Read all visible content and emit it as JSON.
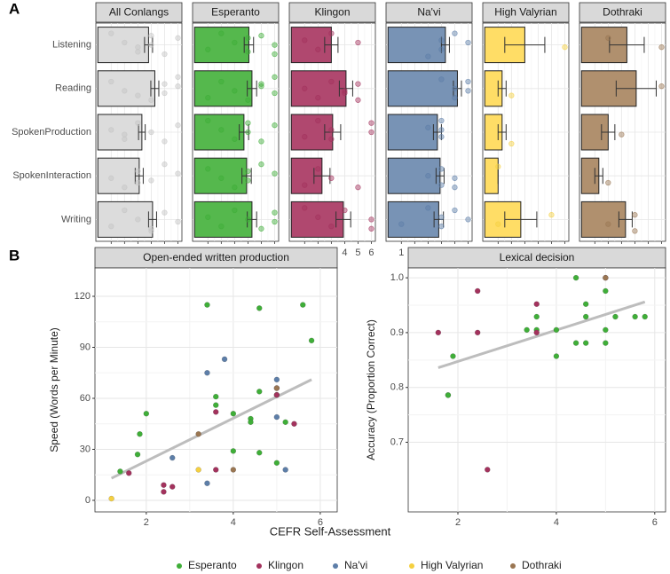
{
  "labels": {
    "a": "A",
    "b": "B"
  },
  "x_label": "CEFR Self-Assessment",
  "legend": {
    "position": "bottom"
  },
  "chart_data": [
    {
      "type": "facet-bar",
      "orientation": "horizontal",
      "categories": [
        "Listening",
        "Reading",
        "SpokenProduction",
        "SpokenInteraction",
        "Writing"
      ],
      "xlim": [
        -0.15,
        6.3
      ],
      "xticks": [
        1,
        2,
        3,
        4,
        5,
        6
      ],
      "grid": true,
      "series": [
        {
          "name": "All Conlangs",
          "color": "#dcdcdc",
          "point_color": "#c4c4c4",
          "values": [
            3.8,
            4.27,
            3.3,
            3.1,
            4.1
          ],
          "errors": [
            0.3,
            0.3,
            0.25,
            0.3,
            0.3
          ],
          "points": [
            [
              1,
              2,
              3,
              4,
              4,
              5,
              6,
              3
            ],
            [
              1,
              2,
              4,
              5,
              5,
              6,
              6,
              3
            ],
            [
              1,
              2,
              3,
              4,
              5,
              6,
              2
            ],
            [
              1,
              2,
              3,
              4,
              5,
              6,
              3
            ],
            [
              1,
              2,
              3,
              4,
              5,
              6,
              4
            ]
          ]
        },
        {
          "name": "Esperanto",
          "color": "#55b84d",
          "point_color": "#3fae38",
          "values": [
            4.07,
            4.3,
            3.7,
            3.9,
            4.3
          ],
          "errors": [
            0.35,
            0.35,
            0.35,
            0.35,
            0.35
          ],
          "points": [
            [
              1,
              2,
              3,
              4,
              5,
              6,
              6,
              4
            ],
            [
              1,
              2,
              3,
              4,
              5,
              6,
              6,
              5
            ],
            [
              1,
              2,
              3,
              4,
              4,
              5,
              6
            ],
            [
              1,
              2,
              3,
              4,
              4,
              5,
              6
            ],
            [
              1,
              2,
              3,
              4,
              5,
              6,
              6
            ]
          ]
        },
        {
          "name": "Klingon",
          "color": "#b0486f",
          "point_color": "#a3325d",
          "values": [
            3.0,
            4.1,
            3.1,
            2.3,
            3.9
          ],
          "errors": [
            0.5,
            0.5,
            0.6,
            0.6,
            0.55
          ],
          "points": [
            [
              1,
              2,
              3,
              5
            ],
            [
              1,
              2,
              3,
              4,
              5,
              5,
              4
            ],
            [
              1,
              2,
              3,
              3,
              6,
              6
            ],
            [
              1,
              2,
              3,
              5
            ],
            [
              1,
              2,
              3,
              4,
              6,
              6
            ]
          ]
        },
        {
          "name": "Na'vi",
          "color": "#7893b5",
          "point_color": "#5d7ea8",
          "values": [
            4.3,
            5.2,
            3.7,
            3.9,
            3.8
          ],
          "errors": [
            0.3,
            0.3,
            0.3,
            0.3,
            0.35
          ],
          "points": [
            [
              3,
              4,
              4,
              5,
              6
            ],
            [
              4,
              5,
              5,
              6,
              6
            ],
            [
              3,
              4,
              4,
              4
            ],
            [
              3,
              4,
              4,
              5,
              5
            ],
            [
              1,
              3,
              4,
              4,
              5,
              6
            ]
          ]
        },
        {
          "name": "High Valyrian",
          "color": "#ffdd66",
          "point_color": "#f5d040",
          "values": [
            3.0,
            1.3,
            1.3,
            1.0,
            2.7
          ],
          "errors": [
            1.5,
            0.3,
            0.3,
            0,
            1.2
          ],
          "points": [
            [
              6
            ],
            [
              2
            ],
            [
              2
            ],
            [
              1
            ],
            [
              5,
              1
            ]
          ]
        },
        {
          "name": "Dothraki",
          "color": "#b0906e",
          "point_color": "#9a7652",
          "values": [
            3.4,
            4.1,
            2.0,
            1.3,
            3.3
          ],
          "errors": [
            1.3,
            1.5,
            0.5,
            0.3,
            0.5
          ],
          "points": [
            [
              2,
              6
            ],
            [
              6
            ],
            [
              3
            ],
            [
              2
            ],
            [
              4,
              4,
              2
            ]
          ]
        }
      ]
    },
    {
      "type": "scatter",
      "title": "Open-ended written production",
      "y_label": "Speed (Words per Minute)",
      "xlim": [
        0.82,
        6.39
      ],
      "ylim": [
        -6.8,
        136.7
      ],
      "xticks": [
        2,
        4,
        6
      ],
      "yticks": [
        0,
        30,
        60,
        90,
        120
      ],
      "grid": true,
      "series": [
        {
          "name": "Esperanto",
          "color": "#3fae38",
          "x": [
            1.4,
            1.8,
            1.85,
            2.0,
            3.4,
            3.6,
            3.6,
            4.0,
            4.0,
            4.4,
            4.4,
            4.6,
            4.6,
            4.6,
            5.0,
            5.0,
            5.2,
            5.6,
            5.8
          ],
          "y": [
            17,
            27,
            39,
            51,
            115,
            61,
            56,
            51,
            29,
            48,
            46,
            113,
            64,
            28,
            62,
            22,
            46,
            115,
            94
          ]
        },
        {
          "name": "Klingon",
          "color": "#a3325d",
          "x": [
            1.6,
            2.4,
            2.4,
            2.6,
            3.6,
            3.6,
            5.0,
            5.0,
            5.4
          ],
          "y": [
            16,
            9,
            5,
            8,
            52,
            18,
            66,
            62,
            45
          ]
        },
        {
          "name": "Na'vi",
          "color": "#5d7ea8",
          "x": [
            2.6,
            3.4,
            3.4,
            3.8,
            5.0,
            5.0,
            5.2
          ],
          "y": [
            25,
            75,
            10,
            83,
            71,
            49,
            18
          ]
        },
        {
          "name": "High Valyrian",
          "color": "#f5d040",
          "x": [
            1.2,
            3.2
          ],
          "y": [
            1,
            18
          ]
        },
        {
          "name": "Dothraki",
          "color": "#9a7652",
          "x": [
            3.2,
            4.0,
            5.0
          ],
          "y": [
            39,
            18,
            66
          ]
        }
      ],
      "trend": {
        "color": "#bdbdbd",
        "x": [
          1.2,
          5.8
        ],
        "y": [
          13,
          71
        ]
      }
    },
    {
      "type": "scatter",
      "title": "Lexical decision",
      "y_label": "Accuracy (Proportion Correct)",
      "xlim": [
        0.99,
        6.22
      ],
      "ylim": [
        0.573,
        1.018
      ],
      "xticks": [
        2,
        4,
        6
      ],
      "yticks": [
        0.7,
        0.8,
        0.9,
        {
          "value": 1,
          "label": "1.0"
        }
      ],
      "grid": true,
      "series": [
        {
          "name": "Esperanto",
          "color": "#3fae38",
          "x": [
            1.8,
            1.8,
            1.9,
            3.4,
            3.6,
            3.6,
            4.0,
            4.0,
            4.4,
            4.4,
            4.6,
            4.6,
            4.6,
            5.0,
            5.0,
            5.0,
            5.2,
            5.6,
            5.8
          ],
          "y": [
            0.786,
            0.786,
            0.857,
            0.905,
            0.929,
            0.905,
            0.905,
            0.857,
            1.0,
            0.881,
            0.952,
            0.929,
            0.881,
            0.976,
            0.905,
            0.881,
            0.929,
            0.929,
            0.929
          ]
        },
        {
          "name": "Klingon",
          "color": "#a3325d",
          "x": [
            1.6,
            2.4,
            2.4,
            2.6,
            3.6,
            3.6,
            5.0
          ],
          "y": [
            0.9,
            0.976,
            0.9,
            0.65,
            0.952,
            0.9,
            1.0
          ]
        },
        {
          "name": "Dothraki",
          "color": "#9a7652",
          "x": [
            5.0
          ],
          "y": [
            1.0
          ]
        }
      ],
      "trend": {
        "color": "#bdbdbd",
        "x": [
          1.6,
          5.8
        ],
        "y": [
          0.836,
          0.956
        ]
      }
    }
  ]
}
